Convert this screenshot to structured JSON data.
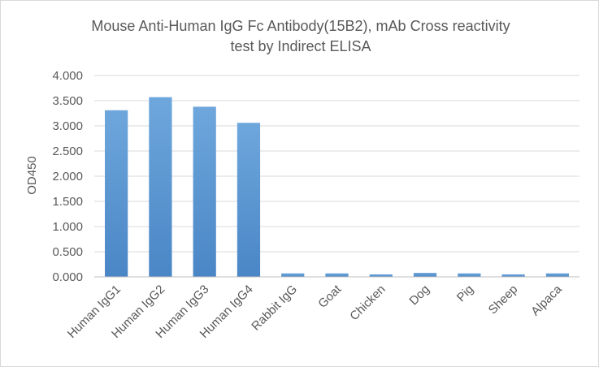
{
  "chart_data": {
    "type": "bar",
    "title_lines": [
      "Mouse Anti-Human IgG Fc Antibody(15B2), mAb Cross reactivity",
      "test by Indirect ELISA"
    ],
    "ylabel": "OD450",
    "xlabel": "",
    "categories": [
      "Human IgG1",
      "Human IgG2",
      "Human IgG3",
      "Human IgG4",
      "Rabbit IgG",
      "Goat",
      "Chicken",
      "Dog",
      "Pig",
      "Sheep",
      "Alpaca"
    ],
    "values": [
      3.31,
      3.57,
      3.38,
      3.06,
      0.07,
      0.07,
      0.05,
      0.08,
      0.07,
      0.05,
      0.07
    ],
    "ylim": [
      0,
      4
    ],
    "y_ticks": [
      "0.000",
      "0.500",
      "1.000",
      "1.500",
      "2.000",
      "2.500",
      "3.000",
      "3.500",
      "4.000"
    ],
    "grid": true,
    "legend": "none",
    "bar_color": "#5b9bd5",
    "bar_color_dark": "#4a86c6"
  }
}
